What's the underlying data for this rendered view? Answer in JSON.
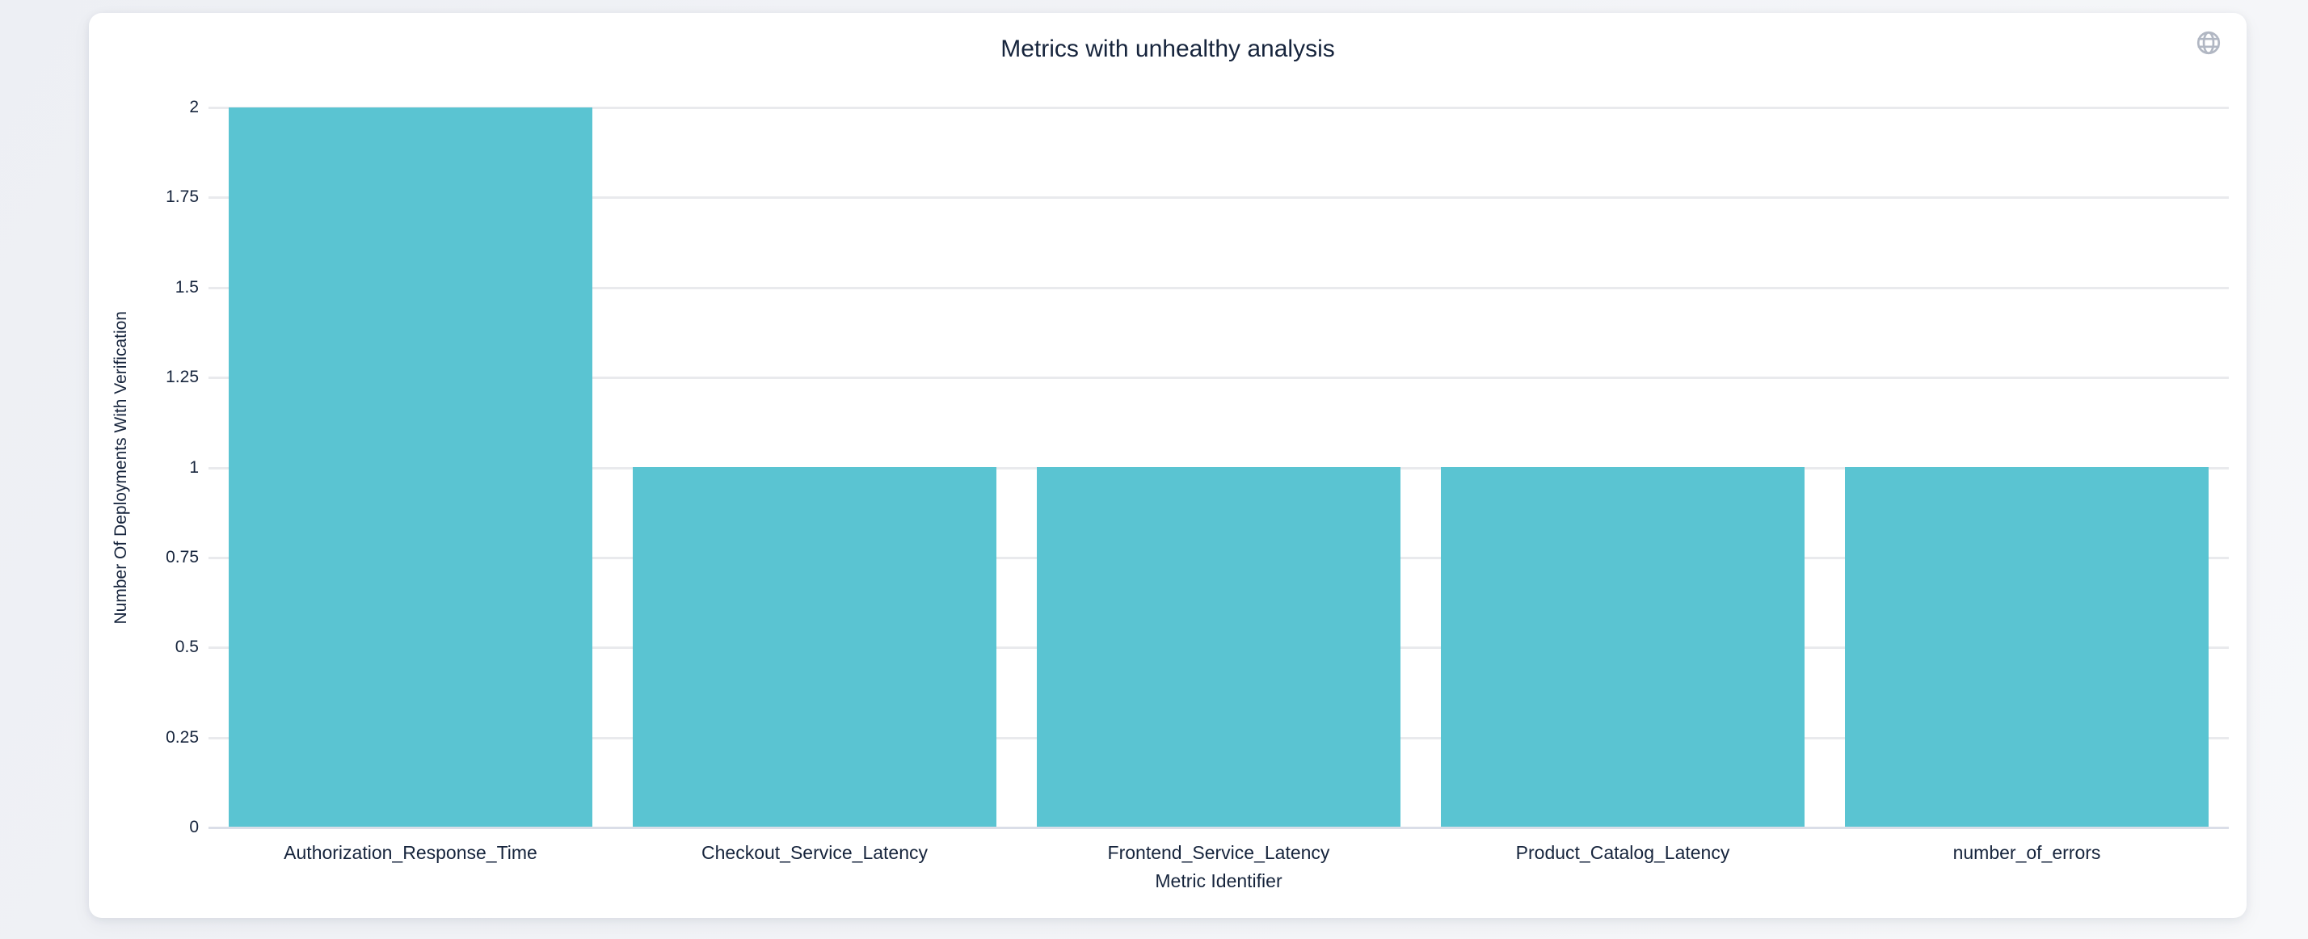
{
  "colors": {
    "bar": "#5ac4d2",
    "grid_line": "#e9eaed",
    "axis_line": "#dadee8",
    "text": "#16243c",
    "icon": "#b1b7c3",
    "card_bg": "#ffffff",
    "page_bg": "#edeff4"
  },
  "icons": {
    "top_right": "globe-icon"
  },
  "chart_data": {
    "type": "bar",
    "title": "Metrics with unhealthy analysis",
    "categories": [
      "Authorization_Response_Time",
      "Checkout_Service_Latency",
      "Frontend_Service_Latency",
      "Product_Catalog_Latency",
      "number_of_errors"
    ],
    "values": [
      2,
      1,
      1,
      1,
      1
    ],
    "xlabel": "Metric Identifier",
    "ylabel": "Number Of Deployments With Verification",
    "ylim": [
      0,
      2
    ],
    "yticks": [
      0,
      0.25,
      0.5,
      0.75,
      1,
      1.25,
      1.5,
      1.75,
      2
    ],
    "ytick_labels": [
      "0",
      "0.25",
      "0.5",
      "0.75",
      "1",
      "1.25",
      "1.5",
      "1.75",
      "2"
    ],
    "grid": true,
    "legend": "none",
    "bar_color": "#5ac4d2"
  }
}
